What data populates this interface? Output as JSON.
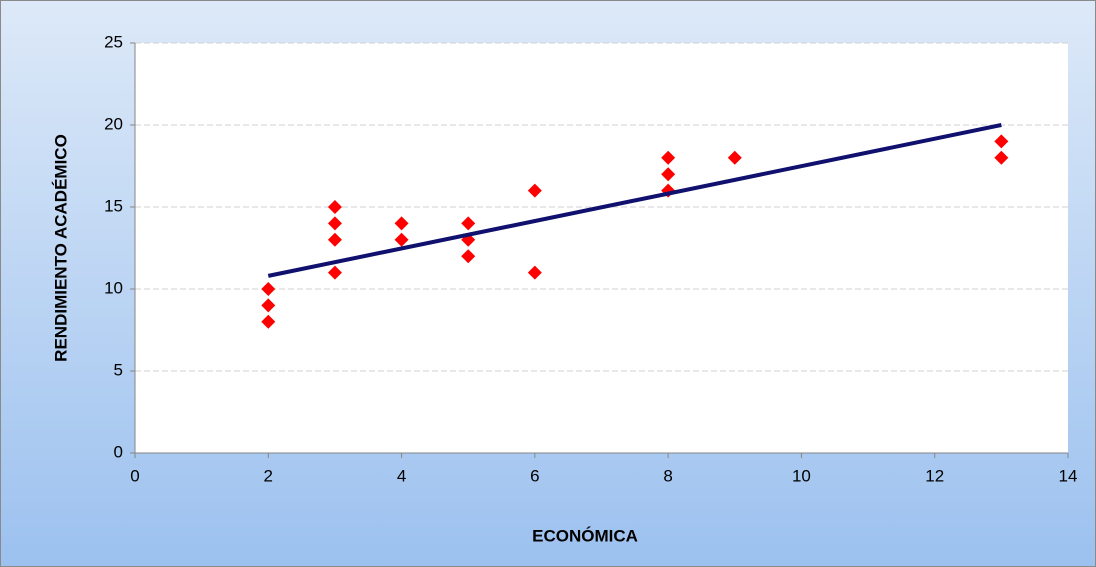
{
  "chart_data": {
    "type": "scatter",
    "x_label": "ECONÓMICA",
    "y_label": "RENDIMIENTO ACADÉMICO",
    "series": [
      {
        "color": "#ff0000",
        "x": [
          2,
          2,
          2,
          3,
          3,
          3,
          3,
          4,
          4,
          5,
          5,
          5,
          6,
          6,
          8,
          8,
          8,
          9,
          13,
          13
        ],
        "values": [
          10,
          9,
          8,
          15,
          14,
          13,
          11,
          14,
          13,
          14,
          13,
          12,
          16,
          11,
          18,
          17,
          16,
          18,
          19,
          18
        ]
      }
    ],
    "trendline": {
      "color": "#10106e",
      "x": [
        2,
        13
      ],
      "values": [
        10.8,
        20
      ]
    },
    "xlim": [
      0,
      14
    ],
    "xticks": [
      0,
      2,
      4,
      6,
      8,
      10,
      12,
      14
    ],
    "ylim": [
      0,
      25
    ],
    "yticks": [
      0,
      5,
      10,
      15,
      20,
      25
    ],
    "grid": true
  }
}
